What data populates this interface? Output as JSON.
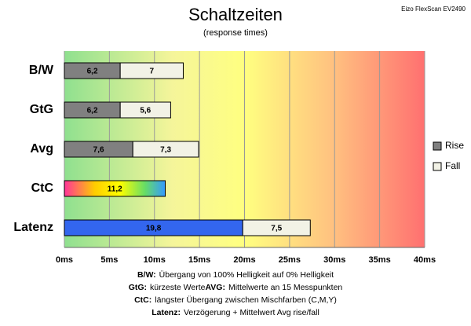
{
  "chart_data": {
    "type": "stacked-barh",
    "title": "Schaltzeiten",
    "subtitle": "(response times)",
    "corner_label": "Eizo FlexScan EV2490",
    "categories": [
      "B/W",
      "GtG",
      "Avg",
      "CtC",
      "Latenz"
    ],
    "series": [
      {
        "name": "Rise",
        "color": "#808080",
        "values": [
          6.2,
          6.2,
          7.6,
          11.2,
          19.8
        ],
        "value_labels": [
          "6,2",
          "6,2",
          "7,6",
          "11,2",
          "19,8"
        ]
      },
      {
        "name": "Fall",
        "color": "#f2f2e6",
        "values": [
          7,
          5.6,
          7.3,
          null,
          7.5
        ],
        "value_labels": [
          "7",
          "5,6",
          "7,3",
          null,
          "7,5"
        ]
      }
    ],
    "xlim": [
      0,
      40
    ],
    "xticks": [
      {
        "value": 0,
        "label": "0ms"
      },
      {
        "value": 5,
        "label": "5ms"
      },
      {
        "value": 10,
        "label": "10ms"
      },
      {
        "value": 15,
        "label": "15ms"
      },
      {
        "value": 20,
        "label": "20ms"
      },
      {
        "value": 25,
        "label": "25ms"
      },
      {
        "value": 30,
        "label": "30ms"
      },
      {
        "value": 35,
        "label": "35ms"
      },
      {
        "value": 40,
        "label": "40ms"
      }
    ],
    "grid": true,
    "legend": "right",
    "notes": [
      [
        {
          "term": "B/W:",
          "text": "Übergang von 100% Helligkeit auf 0% Helligkeit"
        }
      ],
      [
        {
          "term": "GtG:",
          "text": "kürzeste Werte"
        },
        {
          "term": "AVG:",
          "text": "Mittelwerte an 15 Messpunkten"
        }
      ],
      [
        {
          "term": "CtC:",
          "text": "längster Übergang zwischen Mischfarben (C,M,Y)"
        }
      ],
      [
        {
          "term": "Latenz:",
          "text": "Verzögerung + Mittelwert Avg rise/fall"
        }
      ]
    ]
  }
}
